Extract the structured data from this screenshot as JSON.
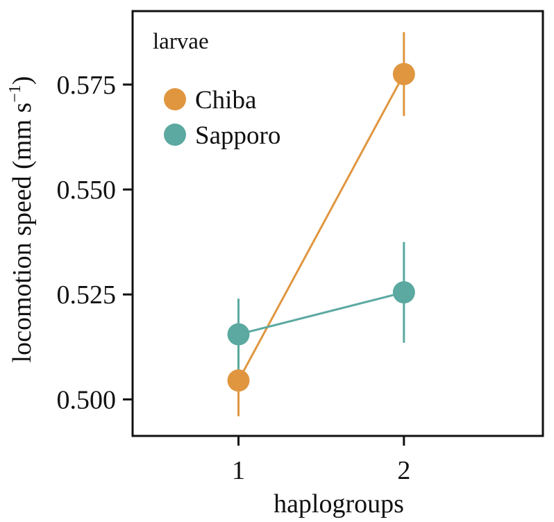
{
  "chart_data": {
    "type": "line",
    "panel_label": "larvae",
    "xlabel": "haplogroups",
    "ylabel_main": "locomotion speed (mm s",
    "ylabel_sup": "−1",
    "ylabel_close": ")",
    "x_categories": [
      "1",
      "2"
    ],
    "xlim": [
      0.36,
      2.84
    ],
    "ylim": [
      0.4913,
      0.5925
    ],
    "yticks": [
      0.5,
      0.525,
      0.55,
      0.575
    ],
    "ytick_labels": [
      "0.500",
      "0.525",
      "0.550",
      "0.575"
    ],
    "legend_position": "top-left",
    "grid": false,
    "series": [
      {
        "name": "Chiba",
        "color": "#E0963F",
        "x": [
          1,
          2
        ],
        "y": [
          0.5045,
          0.5775
        ],
        "err_low": [
          0.496,
          0.5675
        ],
        "err_high": [
          0.5135,
          0.5875
        ]
      },
      {
        "name": "Sapporo",
        "color": "#5BA9A0",
        "x": [
          1,
          2
        ],
        "y": [
          0.5155,
          0.5255
        ],
        "err_low": [
          0.506,
          0.5135
        ],
        "err_high": [
          0.524,
          0.5375
        ]
      }
    ]
  }
}
